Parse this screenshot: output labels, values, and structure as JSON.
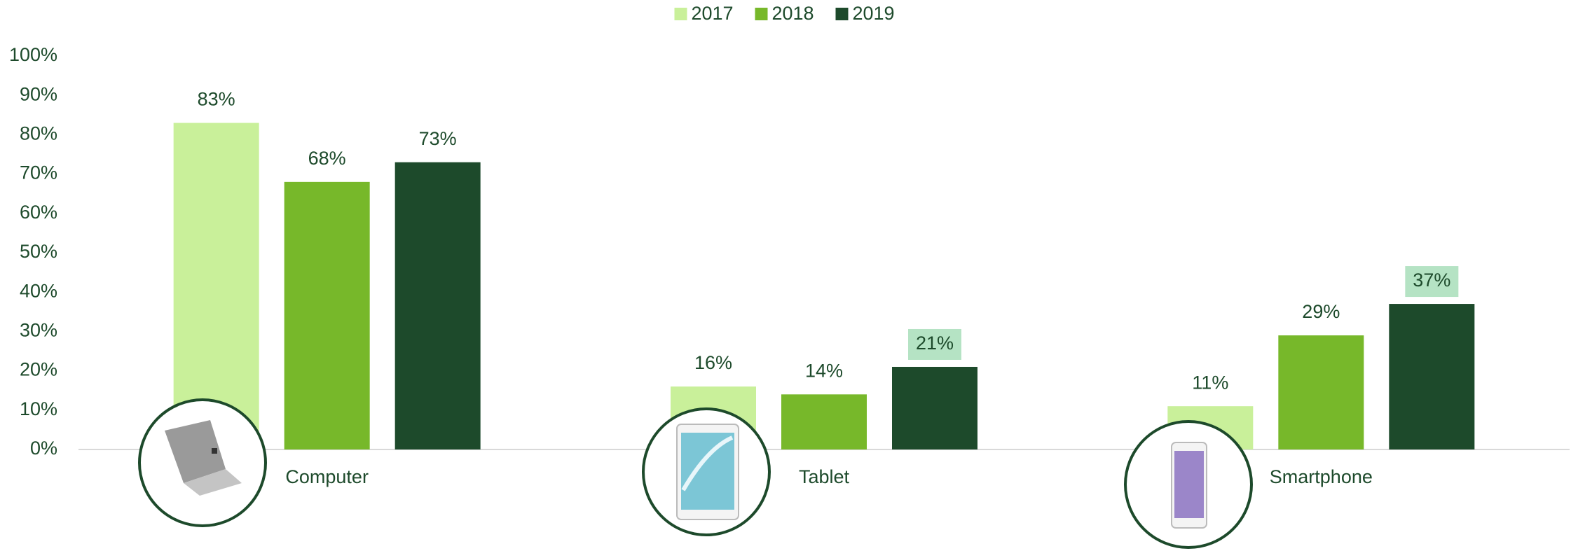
{
  "chart_data": {
    "type": "bar",
    "categories": [
      "Computer",
      "Tablet",
      "Smartphone"
    ],
    "series": [
      {
        "name": "2017",
        "color": "#c9f09a",
        "values": [
          83,
          16,
          11
        ],
        "value_labels": [
          "83%",
          "16%",
          "11%"
        ],
        "label_highlight": [
          false,
          false,
          false
        ]
      },
      {
        "name": "2018",
        "color": "#77b82a",
        "values": [
          68,
          14,
          29
        ],
        "value_labels": [
          "68%",
          "14%",
          "29%"
        ],
        "label_highlight": [
          false,
          false,
          false
        ]
      },
      {
        "name": "2019",
        "color": "#1d4a2b",
        "values": [
          73,
          21,
          37
        ],
        "value_labels": [
          "73%",
          "21%",
          "37%"
        ],
        "label_highlight": [
          false,
          true,
          true
        ]
      }
    ],
    "ylim": [
      0,
      100
    ],
    "yticks": [
      {
        "value": 0,
        "label": "0%"
      },
      {
        "value": 10,
        "label": "10%"
      },
      {
        "value": 20,
        "label": "20%"
      },
      {
        "value": 30,
        "label": "30%"
      },
      {
        "value": 40,
        "label": "40%"
      },
      {
        "value": 50,
        "label": "50%"
      },
      {
        "value": 60,
        "label": "60%"
      },
      {
        "value": 70,
        "label": "70%"
      },
      {
        "value": 80,
        "label": "80%"
      },
      {
        "value": 90,
        "label": "90%"
      },
      {
        "value": 100,
        "label": "100%"
      }
    ],
    "grid": false,
    "legend": "top"
  }
}
